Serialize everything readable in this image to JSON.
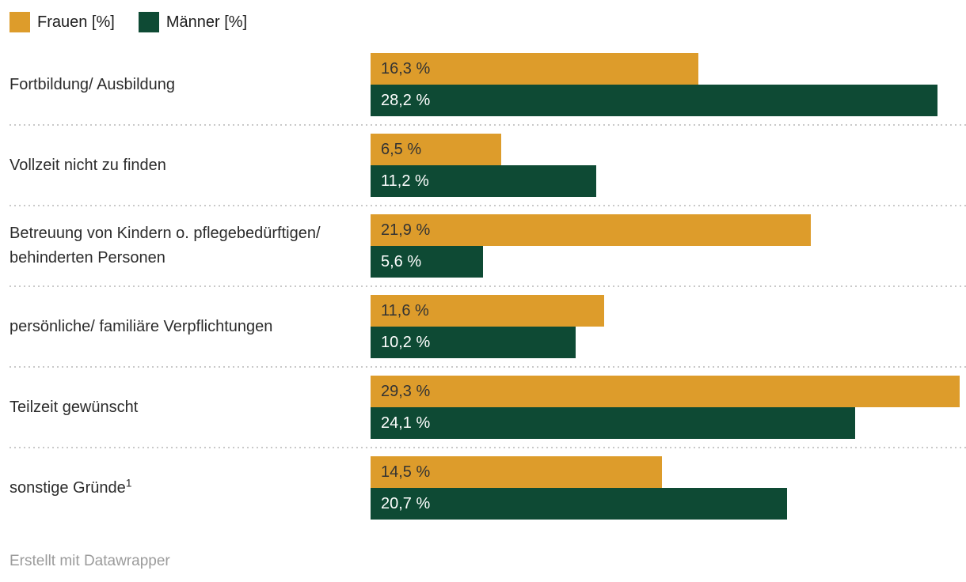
{
  "legend": {
    "items": [
      {
        "label": "Frauen [%]",
        "color": "#DD9C2B"
      },
      {
        "label": "Männer [%]",
        "color": "#0E4A34"
      }
    ]
  },
  "footer": {
    "attribution": "Erstellt mit Datawrapper"
  },
  "chart_data": {
    "type": "bar",
    "orientation": "horizontal",
    "title": "",
    "categories": [
      "Fortbildung/ Ausbildung",
      "Vollzeit nicht zu finden",
      "Betreuung von Kindern o. pflegebedürftigen/ behinderten Personen",
      "persönliche/ familiäre Verpflichtungen",
      "Teilzeit gewünscht",
      "sonstige Gründe¹"
    ],
    "series": [
      {
        "name": "Frauen [%]",
        "color": "#DD9C2B",
        "values": [
          16.3,
          6.5,
          21.9,
          11.6,
          29.3,
          14.5
        ],
        "value_labels": [
          "16,3 %",
          "6,5 %",
          "21,9 %",
          "11,6 %",
          "29,3 %",
          "14,5 %"
        ],
        "value_label_color": "#333333"
      },
      {
        "name": "Männer [%]",
        "color": "#0E4A34",
        "values": [
          28.2,
          11.2,
          5.6,
          10.2,
          24.1,
          20.7
        ],
        "value_labels": [
          "28,2 %",
          "11,2 %",
          "5,6 %",
          "10,2 %",
          "24,1 %",
          "20,7 %"
        ],
        "value_label_color": "#ffffff"
      }
    ],
    "xlim": [
      0,
      29.6
    ],
    "grid": false,
    "legend_position": "top-left",
    "separator_style": "dotted"
  }
}
